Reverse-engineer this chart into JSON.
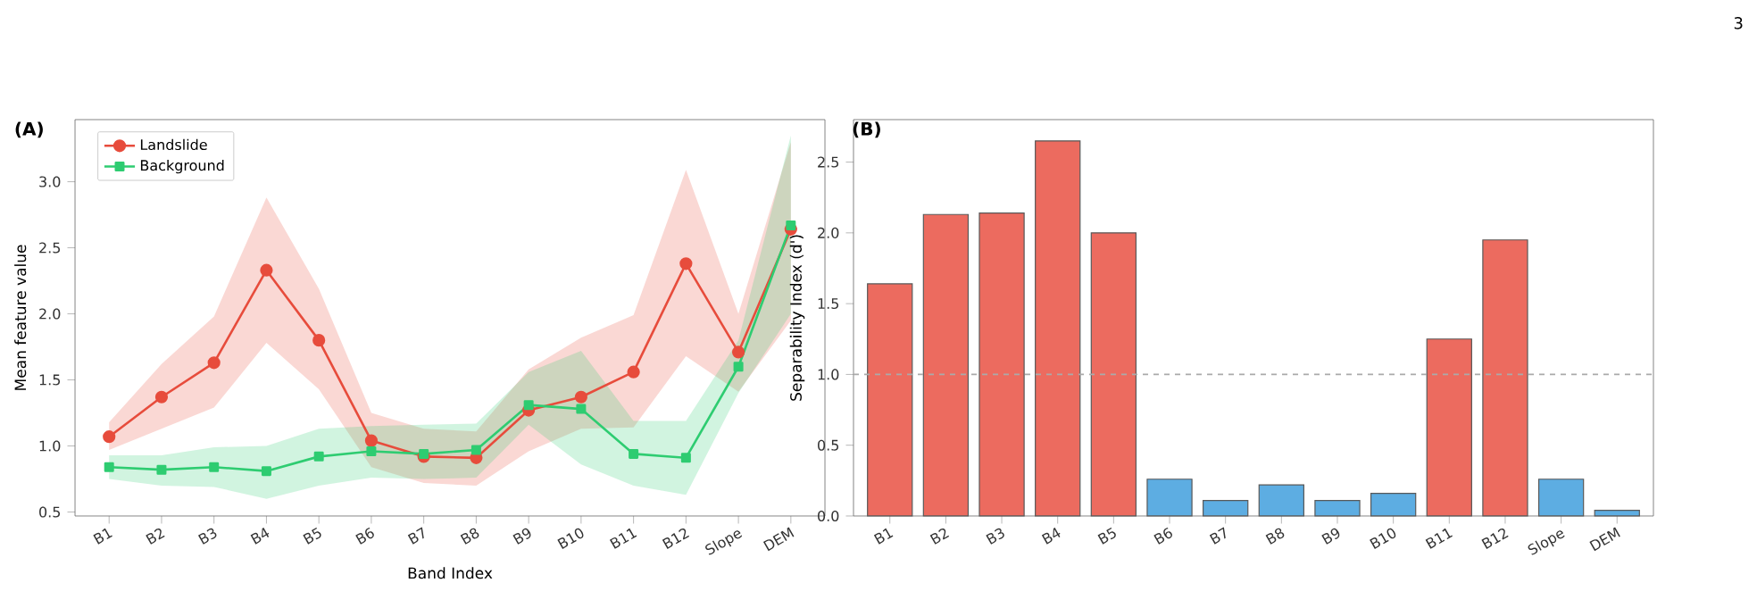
{
  "chart_data": [
    {
      "type": "line",
      "title": "(A)",
      "xlabel": "Band Index",
      "ylabel": "Mean feature value",
      "categories": [
        "B1",
        "B2",
        "B3",
        "B4",
        "B5",
        "B6",
        "B7",
        "B8",
        "B9",
        "B10",
        "B11",
        "B12",
        "Slope",
        "DEM"
      ],
      "ylim": [
        0.47,
        3.47
      ],
      "yticks": [
        0.5,
        {
          "value": 1,
          "label": "1.0"
        },
        1.5,
        {
          "value": 2,
          "label": "2.0"
        },
        2.5,
        {
          "value": 3,
          "label": "3.0"
        }
      ],
      "legend": "top left",
      "series": [
        {
          "name": "Landslide",
          "color": "#e74c3c",
          "marker": "circle",
          "values": [
            1.07,
            1.37,
            1.63,
            2.33,
            1.8,
            1.04,
            0.92,
            0.91,
            1.27,
            1.37,
            1.56,
            2.38,
            1.71,
            2.64
          ],
          "lower": [
            0.97,
            1.13,
            1.29,
            1.78,
            1.43,
            0.84,
            0.72,
            0.7,
            0.96,
            1.13,
            1.14,
            1.68,
            1.41,
            1.95
          ],
          "upper": [
            1.18,
            1.62,
            1.98,
            2.88,
            2.19,
            1.25,
            1.13,
            1.11,
            1.58,
            1.82,
            1.99,
            3.09,
            2.0,
            3.3
          ]
        },
        {
          "name": "Background",
          "color": "#2ecc71",
          "marker": "square",
          "values": [
            0.84,
            0.82,
            0.84,
            0.81,
            0.92,
            0.96,
            0.94,
            0.97,
            1.31,
            1.28,
            0.94,
            0.91,
            1.6,
            2.67
          ],
          "lower": [
            0.75,
            0.7,
            0.69,
            0.6,
            0.7,
            0.76,
            0.75,
            0.76,
            1.16,
            0.86,
            0.7,
            0.63,
            1.4,
            2.0
          ],
          "upper": [
            0.93,
            0.93,
            0.99,
            1.0,
            1.13,
            1.15,
            1.16,
            1.17,
            1.56,
            1.72,
            1.19,
            1.19,
            1.8,
            3.35
          ]
        }
      ]
    },
    {
      "type": "bar",
      "title": "(B)",
      "ylabel": "Separability Index (d')",
      "categories": [
        "B1",
        "B2",
        "B3",
        "B4",
        "B5",
        "B6",
        "B7",
        "B8",
        "B9",
        "B10",
        "B11",
        "B12",
        "Slope",
        "DEM"
      ],
      "ylim": [
        0,
        2.8
      ],
      "yticks": [
        {
          "value": 0,
          "label": "0.0"
        },
        0.5,
        {
          "value": 1,
          "label": "1.0"
        },
        1.5,
        {
          "value": 2,
          "label": "2.0"
        },
        2.5
      ],
      "values": [
        1.64,
        2.13,
        2.14,
        2.65,
        2.0,
        0.26,
        0.11,
        0.22,
        0.11,
        0.16,
        1.25,
        1.95,
        0.26,
        0.04
      ],
      "colors": [
        "#ec6b5f",
        "#ec6b5f",
        "#ec6b5f",
        "#ec6b5f",
        "#ec6b5f",
        "#5dade2",
        "#5dade2",
        "#5dade2",
        "#5dade2",
        "#5dade2",
        "#ec6b5f",
        "#ec6b5f",
        "#5dade2",
        "#5dade2"
      ],
      "ref_lines": [
        {
          "axis": "y",
          "value": 1.0,
          "color": "#aaaaaa",
          "line_style": "dashed"
        }
      ],
      "annotations": [
        "3"
      ]
    }
  ]
}
